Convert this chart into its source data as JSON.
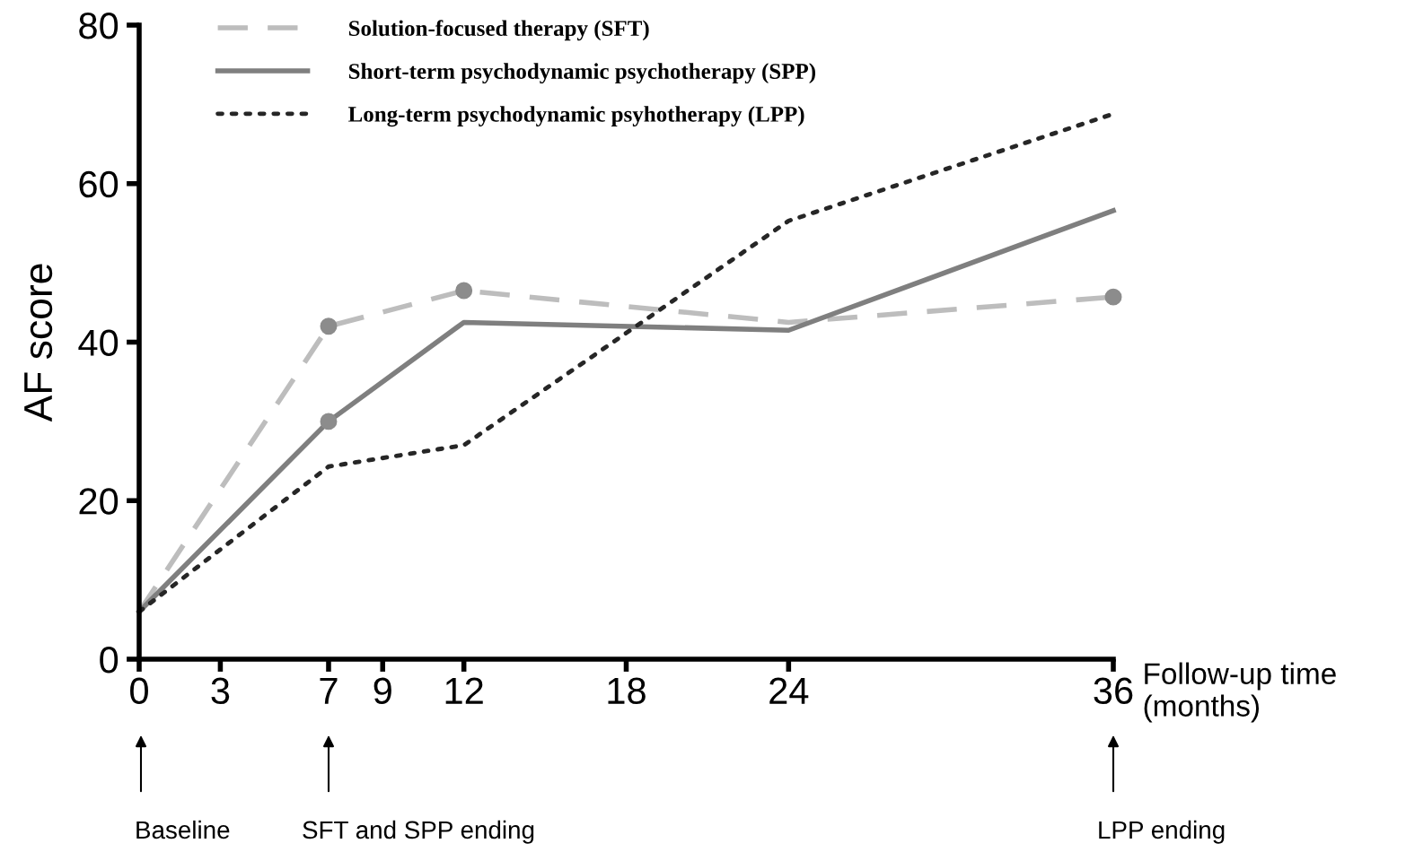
{
  "chart_data": {
    "type": "line",
    "ylabel": "AF score",
    "xlabel": "Follow-up time\n(months)",
    "x": [
      0,
      7,
      12,
      24,
      36
    ],
    "series": [
      {
        "name": "Solution-focused therapy (SFT)",
        "color": "#bdbdbd",
        "line_style": "dashed",
        "values": [
          6,
          42,
          46.5,
          42.5,
          45.7
        ]
      },
      {
        "name": "Short-term psychodynamic psychotherapy (SPP)",
        "color": "#7f7f7f",
        "line_style": "solid",
        "values": [
          6,
          30,
          42.5,
          41.5,
          56.6
        ]
      },
      {
        "name": "Long-term psychodynamic psyhotherapy (LPP)",
        "color": "#262626",
        "line_style": "dotted",
        "values": [
          6,
          24.3,
          27,
          55.3,
          68.8
        ]
      },
      {
        "type": "scatter",
        "marker": "circle",
        "color": "#8c8c8c",
        "x": [
          7,
          12,
          36
        ],
        "values": [
          42,
          46.5,
          45.7
        ]
      },
      {
        "type": "scatter",
        "marker": "circle",
        "color": "#8c8c8c",
        "x": [
          7
        ],
        "values": [
          30
        ]
      }
    ],
    "xlim": [
      0,
      36
    ],
    "xticks": [
      0,
      3,
      7,
      9,
      12,
      18,
      24,
      36
    ],
    "ylim": [
      0,
      80
    ],
    "yticks": [
      0,
      20,
      40,
      60,
      80
    ],
    "grid": false,
    "legend": "top left",
    "annotations": [
      "Baseline",
      "SFT and SPP ending",
      "LPP ending"
    ]
  }
}
